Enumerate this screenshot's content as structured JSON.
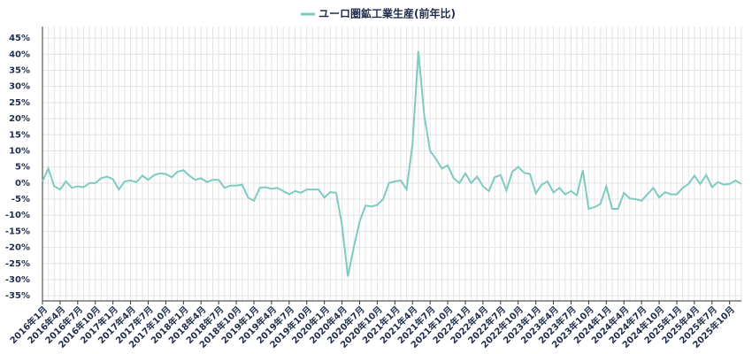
{
  "chart_data": {
    "type": "line",
    "categories": [
      "2016年1月",
      null,
      null,
      "2016年4月",
      null,
      null,
      "2016年7月",
      null,
      null,
      "2016年10月",
      null,
      null,
      "2017年1月",
      null,
      null,
      "2017年4月",
      null,
      null,
      "2017年7月",
      null,
      null,
      "2017年10月",
      null,
      null,
      "2018年1月",
      null,
      null,
      "2018年4月",
      null,
      null,
      "2018年7月",
      null,
      null,
      "2018年10月",
      null,
      null,
      "2019年1月",
      null,
      null,
      "2019年4月",
      null,
      null,
      "2019年7月",
      null,
      null,
      "2019年10月",
      null,
      null,
      "2020年1月",
      null,
      null,
      "2020年4月",
      null,
      null,
      "2020年7月",
      null,
      null,
      "2020年10月",
      null,
      null,
      "2021年1月",
      null,
      null,
      "2021年4月",
      null,
      null,
      "2021年7月",
      null,
      null,
      "2021年10月",
      null,
      null,
      "2022年1月",
      null,
      null,
      "2022年4月",
      null,
      null,
      "2022年7月",
      null,
      null,
      "2022年10月",
      null,
      null,
      "2023年1月",
      null,
      null,
      "2023年4月",
      null,
      null,
      "2023年7月",
      null,
      null,
      "2023年10月",
      null,
      null,
      "2024年1月",
      null,
      null,
      "2024年4月",
      null,
      null,
      "2024年7月",
      null,
      null,
      "2024年10月",
      null,
      null,
      "2025年1月",
      null,
      null,
      "2025年4月",
      null,
      null,
      "2025年7月",
      null,
      null,
      "2025年10月",
      null,
      null
    ],
    "series": [
      {
        "name": "ユーロ圏鉱工業生産(前年比)",
        "color": "#7ecbc0",
        "values": [
          0.5,
          4.5,
          -1,
          -2,
          0.5,
          -1.5,
          -1,
          -1.3,
          0,
          0,
          1.5,
          2,
          1.2,
          -2,
          0.5,
          0.8,
          0.3,
          2.3,
          1,
          2.5,
          3,
          2.8,
          1.8,
          3.5,
          4,
          2.3,
          1,
          1.5,
          0.3,
          1,
          1,
          -1.5,
          -0.8,
          -0.8,
          -0.5,
          -4.5,
          -5.5,
          -1.5,
          -1.3,
          -1.8,
          -1.5,
          -2.5,
          -3.5,
          -2.5,
          -3,
          -2,
          -2,
          -2,
          -4.5,
          -2.8,
          -3,
          -13,
          -29,
          -20,
          -12,
          -7,
          -7.3,
          -6.8,
          -5,
          0,
          0.5,
          0.8,
          -2,
          12,
          41,
          21,
          10,
          7.5,
          4.5,
          5.5,
          1.5,
          0,
          3,
          0,
          2,
          -1,
          -2.5,
          1.8,
          2.5,
          -2.3,
          3.5,
          5,
          3.2,
          2.8,
          -3.2,
          -0.5,
          0.5,
          -3,
          -1.5,
          -3.5,
          -2.5,
          -3.8,
          4,
          -8,
          -7.5,
          -6.5,
          -1,
          -8,
          -8,
          -3,
          -4.8,
          -5,
          -5.5,
          -3.5,
          -1.5,
          -4.5,
          -2.8,
          -3.5,
          -3.5,
          -1.5,
          -0.3,
          2.3,
          -0.3,
          2.5,
          -1.3,
          0.3,
          -0.5,
          -0.3,
          0.8,
          -0.3
        ]
      }
    ],
    "ylim": [
      -36.6,
      48.6
    ],
    "yticks": [
      {
        "value": -35,
        "label": "-35%"
      },
      {
        "value": -30,
        "label": "-30%"
      },
      {
        "value": -25,
        "label": "-25%"
      },
      {
        "value": -20,
        "label": "-20%"
      },
      {
        "value": -15,
        "label": "-15%"
      },
      {
        "value": -10,
        "label": "-10%"
      },
      {
        "value": -5,
        "label": "-5%"
      },
      {
        "value": 0,
        "label": "0%"
      },
      {
        "value": 5,
        "label": "5%"
      },
      {
        "value": 10,
        "label": "10%"
      },
      {
        "value": 15,
        "label": "15%"
      },
      {
        "value": 20,
        "label": "20%"
      },
      {
        "value": 25,
        "label": "25%"
      },
      {
        "value": 30,
        "label": "30%"
      },
      {
        "value": 35,
        "label": "35%"
      },
      {
        "value": 40,
        "label": "40%"
      },
      {
        "value": 45,
        "label": "45%"
      }
    ],
    "grid": true,
    "legend": "top"
  }
}
